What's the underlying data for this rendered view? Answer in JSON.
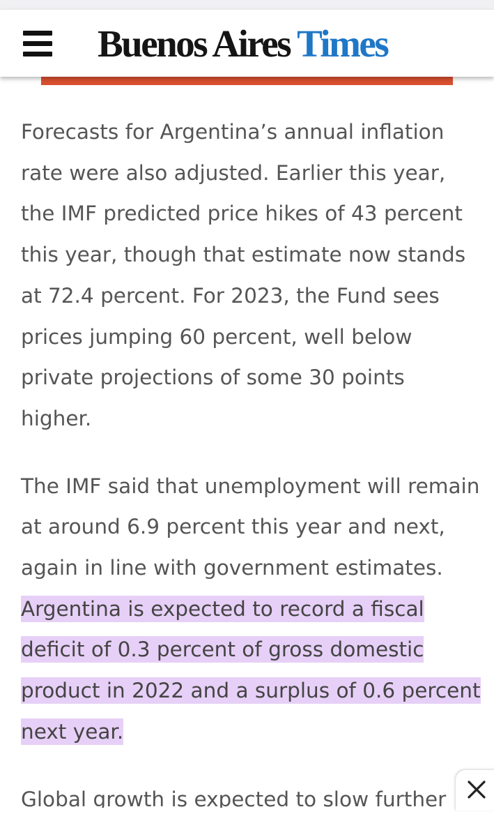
{
  "header": {
    "menu_icon": "hamburger-menu-icon",
    "logo_black": "Buenos Aires",
    "logo_blue": "Times",
    "colors": {
      "logo_blue": "#1f77c7",
      "accent_bar": "#d9502f"
    }
  },
  "article": {
    "paragraph_1": "Forecasts for Argentina’s annual inflation rate were also adjusted. Earlier this year, the IMF predicted price hikes of 43 percent this year, though that estimate now stands at 72.4 percent. For 2023, the Fund sees prices jumping 60 percent, well below private projections of some 30 points higher.",
    "paragraph_2_plain": "The IMF said that unemployment will remain at around 6.9 percent this year and next, again in line with government estimates. ",
    "paragraph_2_highlighted": "Argentina is expected to record a fiscal deficit of 0.3 percent of gross domestic product in 2022 and a surplus of 0.6 percent next year.",
    "paragraph_3": "Global growth is expected to slow further",
    "highlight_color": "#e7d0f7"
  },
  "overlay": {
    "close_icon": "close-icon"
  }
}
